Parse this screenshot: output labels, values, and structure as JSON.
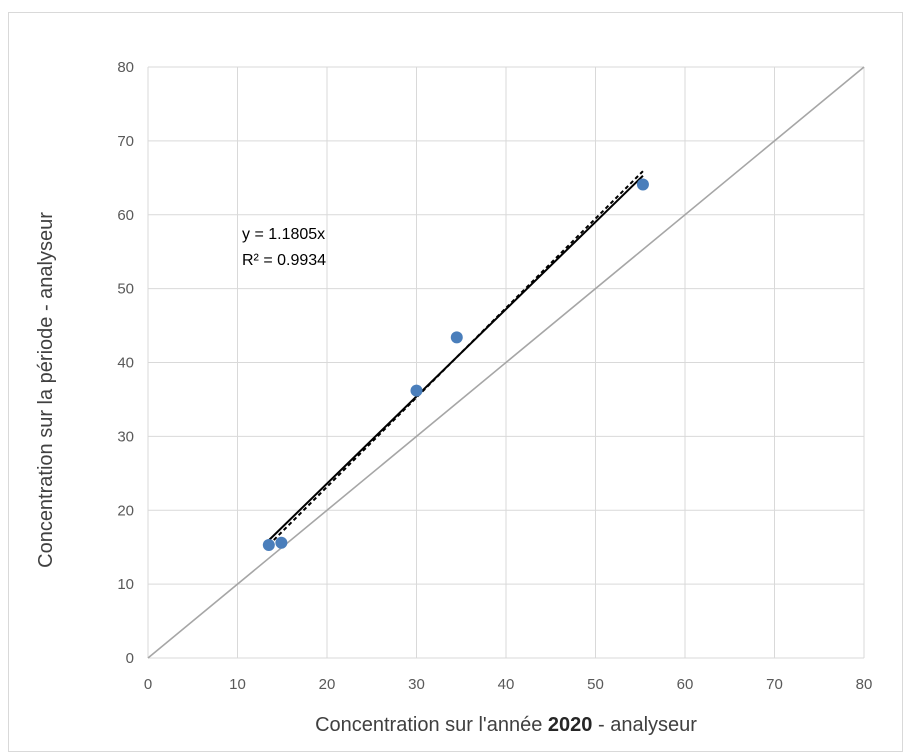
{
  "chart_data": {
    "type": "scatter",
    "title": "",
    "xlabel_parts": [
      {
        "text": "Concentration sur l'année ",
        "bold": false
      },
      {
        "text": "2020",
        "bold": true
      },
      {
        "text": " - analyseur",
        "bold": false
      }
    ],
    "ylabel": "Concentration sur la période - analyseur",
    "xlim": [
      0,
      80
    ],
    "ylim": [
      0,
      80
    ],
    "xticks": [
      "0",
      "10",
      "20",
      "30",
      "40",
      "50",
      "60",
      "70",
      "80"
    ],
    "yticks": [
      "0",
      "10",
      "20",
      "30",
      "40",
      "50",
      "60",
      "70",
      "80"
    ],
    "grid": true,
    "legend": "none",
    "series": [
      {
        "points": [
          {
            "x": 13.5,
            "y": 15.3
          },
          {
            "x": 14.9,
            "y": 15.6
          },
          {
            "x": 30.0,
            "y": 36.2
          },
          {
            "x": 34.5,
            "y": 43.4
          },
          {
            "x": 55.3,
            "y": 64.1
          }
        ],
        "color": "#4a7ebb"
      }
    ],
    "trendline": {
      "slope": 1.1805,
      "x_range": [
        13.5,
        55.3
      ],
      "color": "#000000"
    },
    "trendline_dashed": {
      "x_range": [
        13.5,
        55.3
      ],
      "y_range": [
        15.3,
        65.9
      ],
      "color": "#000000"
    },
    "reference_line": {
      "from": [
        0,
        0
      ],
      "to": [
        80,
        80
      ],
      "color": "#a6a6a6"
    },
    "annotation": {
      "equation": "y = 1.1805x",
      "r_squared": "R² = 0.9934"
    }
  }
}
